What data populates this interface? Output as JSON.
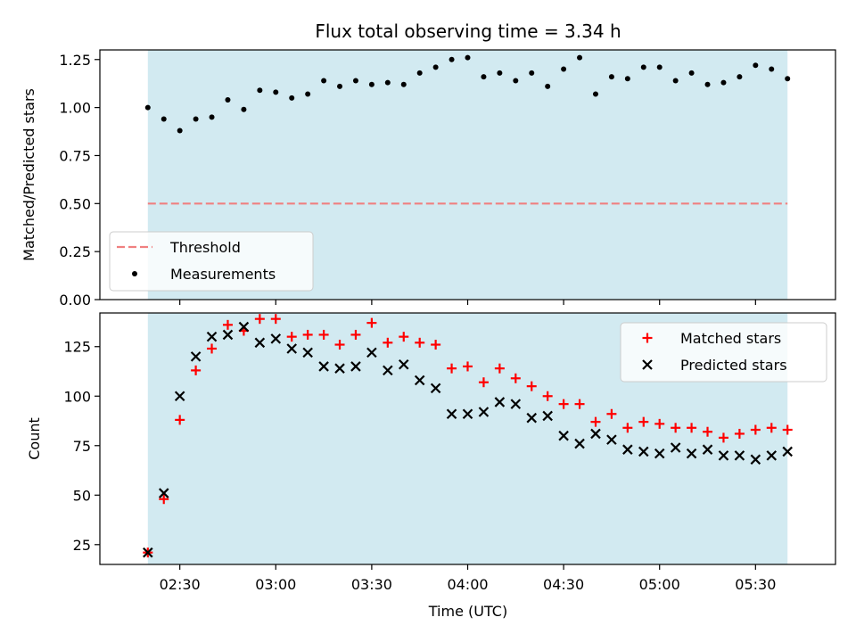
{
  "title": "Flux total observing time = 3.34 h",
  "chart_data": [
    {
      "type": "scatter",
      "ylabel": "Matched/Predicted stars",
      "xlabel": "",
      "ylim": [
        0,
        1.3
      ],
      "xlim": [
        "02:05",
        "05:55"
      ],
      "yticks": [
        "0.00",
        "0.25",
        "0.50",
        "0.75",
        "1.00",
        "1.25"
      ],
      "yticks_values": [
        0,
        0.25,
        0.5,
        0.75,
        1.0,
        1.25
      ],
      "shaded_span": [
        "02:20",
        "05:40"
      ],
      "threshold": 0.5,
      "legend": {
        "placement": "lower-left",
        "entries": [
          "Threshold",
          "Measurements"
        ]
      },
      "series": [
        {
          "name": "Measurements",
          "x": [
            "02:20",
            "02:25",
            "02:30",
            "02:35",
            "02:40",
            "02:45",
            "02:50",
            "02:55",
            "03:00",
            "03:05",
            "03:10",
            "03:15",
            "03:20",
            "03:25",
            "03:30",
            "03:35",
            "03:40",
            "03:45",
            "03:50",
            "03:55",
            "04:00",
            "04:05",
            "04:10",
            "04:15",
            "04:20",
            "04:25",
            "04:30",
            "04:35",
            "04:40",
            "04:45",
            "04:50",
            "04:55",
            "05:00",
            "05:05",
            "05:10",
            "05:15",
            "05:20",
            "05:25",
            "05:30",
            "05:35",
            "05:40"
          ],
          "values": [
            1.0,
            0.94,
            0.88,
            0.94,
            0.95,
            1.04,
            0.99,
            1.09,
            1.08,
            1.05,
            1.07,
            1.14,
            1.11,
            1.14,
            1.12,
            1.13,
            1.12,
            1.18,
            1.21,
            1.25,
            1.26,
            1.16,
            1.18,
            1.14,
            1.18,
            1.11,
            1.2,
            1.26,
            1.07,
            1.16,
            1.15,
            1.21,
            1.21,
            1.14,
            1.18,
            1.12,
            1.13,
            1.16,
            1.22,
            1.2,
            1.15
          ]
        }
      ]
    },
    {
      "type": "scatter",
      "ylabel": "Count",
      "xlabel": "Time (UTC)",
      "ylim": [
        15,
        142
      ],
      "xlim": [
        "02:05",
        "05:55"
      ],
      "yticks": [
        "25",
        "50",
        "75",
        "100",
        "125"
      ],
      "yticks_values": [
        25,
        50,
        75,
        100,
        125
      ],
      "xticks": [
        "02:30",
        "03:00",
        "03:30",
        "04:00",
        "04:30",
        "05:00",
        "05:30"
      ],
      "shaded_span": [
        "02:20",
        "05:40"
      ],
      "legend": {
        "placement": "upper-right",
        "entries": [
          "Matched stars",
          "Predicted stars"
        ]
      },
      "series": [
        {
          "name": "Matched stars",
          "color": "#ff0000",
          "x": [
            "02:20",
            "02:25",
            "02:30",
            "02:35",
            "02:40",
            "02:45",
            "02:50",
            "02:55",
            "03:00",
            "03:05",
            "03:10",
            "03:15",
            "03:20",
            "03:25",
            "03:30",
            "03:35",
            "03:40",
            "03:45",
            "03:50",
            "03:55",
            "04:00",
            "04:05",
            "04:10",
            "04:15",
            "04:20",
            "04:25",
            "04:30",
            "04:35",
            "04:40",
            "04:45",
            "04:50",
            "04:55",
            "05:00",
            "05:05",
            "05:10",
            "05:15",
            "05:20",
            "05:25",
            "05:30",
            "05:35",
            "05:40"
          ],
          "values": [
            21,
            48,
            88,
            113,
            124,
            136,
            133,
            139,
            139,
            130,
            131,
            131,
            126,
            131,
            137,
            127,
            130,
            127,
            126,
            114,
            115,
            107,
            114,
            109,
            105,
            100,
            96,
            96,
            87,
            91,
            84,
            87,
            86,
            84,
            84,
            82,
            79,
            81,
            83,
            84,
            83
          ]
        },
        {
          "name": "Predicted stars",
          "color": "#000000",
          "x": [
            "02:20",
            "02:25",
            "02:30",
            "02:35",
            "02:40",
            "02:45",
            "02:50",
            "02:55",
            "03:00",
            "03:05",
            "03:10",
            "03:15",
            "03:20",
            "03:25",
            "03:30",
            "03:35",
            "03:40",
            "03:45",
            "03:50",
            "03:55",
            "04:00",
            "04:05",
            "04:10",
            "04:15",
            "04:20",
            "04:25",
            "04:30",
            "04:35",
            "04:40",
            "04:45",
            "04:50",
            "04:55",
            "05:00",
            "05:05",
            "05:10",
            "05:15",
            "05:20",
            "05:25",
            "05:30",
            "05:35",
            "05:40"
          ],
          "values": [
            21,
            51,
            100,
            120,
            130,
            131,
            135,
            127,
            129,
            124,
            122,
            115,
            114,
            115,
            122,
            113,
            116,
            108,
            104,
            91,
            91,
            92,
            97,
            96,
            89,
            90,
            80,
            76,
            81,
            78,
            73,
            72,
            71,
            74,
            71,
            73,
            70,
            70,
            68,
            70,
            72
          ]
        }
      ]
    }
  ],
  "colors": {
    "shade": "#add8e6",
    "threshold": "#f08080",
    "matched": "#ff0000",
    "predicted": "#000000",
    "measurement": "#000000"
  }
}
